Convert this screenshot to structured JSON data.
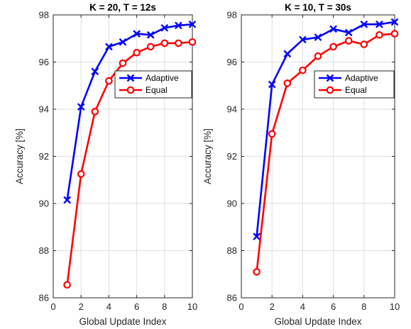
{
  "chart_data": [
    {
      "type": "line",
      "title": "K = 20, T = 12s",
      "xlabel": "Global Update Index",
      "ylabel": "Accuracy [%]",
      "xlim": [
        0,
        10
      ],
      "ylim": [
        86,
        98
      ],
      "xticks": [
        "0",
        "2",
        "4",
        "6",
        "8",
        "10"
      ],
      "yticks": [
        "86",
        "88",
        "90",
        "92",
        "94",
        "96",
        "98"
      ],
      "grid": true,
      "legend_position": "right, upper-middle",
      "x": [
        1,
        2,
        3,
        4,
        5,
        6,
        7,
        8,
        9,
        10
      ],
      "series": [
        {
          "name": "Adaptive",
          "color": "#0000ff",
          "marker": "x",
          "values": [
            90.15,
            94.1,
            95.6,
            96.65,
            96.85,
            97.2,
            97.15,
            97.45,
            97.55,
            97.6
          ]
        },
        {
          "name": "Equal",
          "color": "#ff0000",
          "marker": "circle",
          "values": [
            86.55,
            91.25,
            93.9,
            95.2,
            95.95,
            96.4,
            96.65,
            96.8,
            96.8,
            96.85
          ]
        }
      ]
    },
    {
      "type": "line",
      "title": "K = 10, T = 30s",
      "xlabel": "Global Update Index",
      "ylabel": "Accuracy [%]",
      "xlim": [
        0,
        10
      ],
      "ylim": [
        86,
        98
      ],
      "xticks": [
        "0",
        "2",
        "4",
        "6",
        "8",
        "10"
      ],
      "yticks": [
        "86",
        "88",
        "90",
        "92",
        "94",
        "96",
        "98"
      ],
      "grid": true,
      "legend_position": "top-right",
      "x": [
        1,
        2,
        3,
        4,
        5,
        6,
        7,
        8,
        9,
        10
      ],
      "series": [
        {
          "name": "Adaptive",
          "color": "#0000ff",
          "marker": "x",
          "values": [
            88.6,
            95.05,
            96.35,
            96.95,
            97.05,
            97.4,
            97.25,
            97.6,
            97.6,
            97.7
          ]
        },
        {
          "name": "Equal",
          "color": "#ff0000",
          "marker": "circle",
          "values": [
            87.1,
            92.95,
            95.1,
            95.65,
            96.25,
            96.65,
            96.9,
            96.75,
            97.15,
            97.2
          ]
        }
      ]
    }
  ]
}
